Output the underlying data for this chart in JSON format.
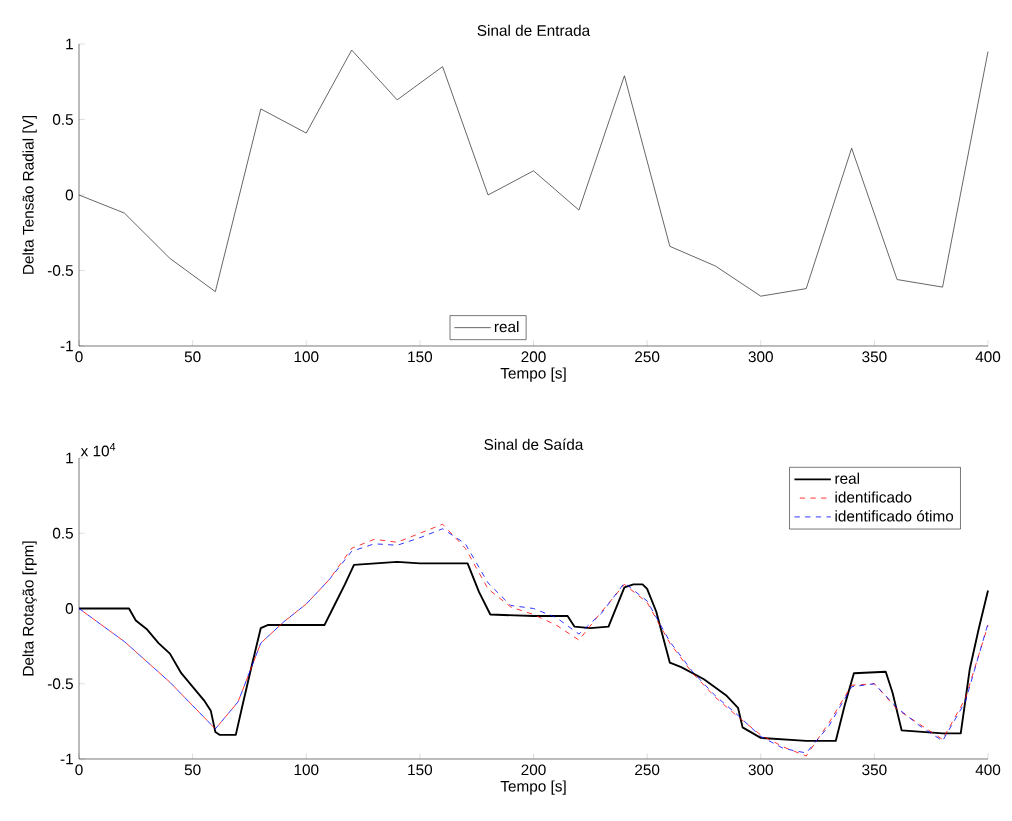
{
  "chart_data": [
    {
      "type": "line",
      "title": "Sinal de Entrada",
      "xlabel": "Tempo [s]",
      "ylabel": "Delta Tensão Radial [V]",
      "xlim": [
        0,
        400
      ],
      "ylim": [
        -1,
        1
      ],
      "xticks": [
        0,
        50,
        100,
        150,
        200,
        250,
        300,
        350,
        400
      ],
      "yticks": [
        -1,
        -0.5,
        0,
        0.5,
        1
      ],
      "legend": "bottom",
      "line_style": "solid",
      "series": [
        {
          "name": "real",
          "color": "#404040",
          "x": [
            0,
            20,
            40,
            60,
            80,
            100,
            120,
            140,
            160,
            180,
            200,
            220,
            240,
            260,
            280,
            300,
            320,
            340,
            360,
            380,
            400
          ],
          "values": [
            0,
            -0.12,
            -0.42,
            -0.64,
            0.57,
            0.41,
            0.96,
            0.63,
            0.85,
            0.0,
            0.16,
            -0.1,
            0.79,
            -0.34,
            -0.47,
            -0.67,
            -0.62,
            0.31,
            -0.56,
            -0.61,
            0.95
          ]
        }
      ]
    },
    {
      "type": "line",
      "title": "Sinal de Saída",
      "xlabel": "Tempo [s]",
      "ylabel": "Delta Rotação [rpm]",
      "annotations": [
        "x 10$^{4}$"
      ],
      "xlim": [
        0,
        400
      ],
      "ylim": [
        -1,
        1
      ],
      "xticks": [
        0,
        50,
        100,
        150,
        200,
        250,
        300,
        350,
        400
      ],
      "yticks": [
        -1,
        -0.5,
        0,
        0.5,
        1
      ],
      "legend": "top right",
      "series": [
        {
          "name": "real",
          "color": "#000000",
          "line_style": "solid",
          "x": [
            0,
            22,
            25,
            30,
            35,
            40,
            45,
            50,
            55,
            58,
            60,
            62,
            69,
            72,
            76,
            80,
            83,
            108,
            113,
            117,
            121,
            140,
            150,
            171,
            176,
            181,
            200,
            205,
            215,
            218,
            225,
            233,
            240,
            244,
            248,
            250,
            254,
            260,
            265,
            275,
            285,
            290,
            292,
            300,
            320,
            333,
            337,
            341,
            355,
            358,
            362,
            380,
            388,
            392,
            396,
            400
          ],
          "values": [
            0,
            0,
            -0.08,
            -0.14,
            -0.23,
            -0.3,
            -0.43,
            -0.52,
            -0.61,
            -0.68,
            -0.82,
            -0.84,
            -0.84,
            -0.64,
            -0.38,
            -0.13,
            -0.11,
            -0.11,
            0.04,
            0.16,
            0.29,
            0.31,
            0.3,
            0.3,
            0.11,
            -0.04,
            -0.05,
            -0.05,
            -0.05,
            -0.12,
            -0.13,
            -0.12,
            0.14,
            0.16,
            0.16,
            0.13,
            -0.02,
            -0.36,
            -0.39,
            -0.47,
            -0.58,
            -0.66,
            -0.79,
            -0.86,
            -0.88,
            -0.88,
            -0.64,
            -0.43,
            -0.42,
            -0.56,
            -0.81,
            -0.83,
            -0.83,
            -0.4,
            -0.13,
            0.12
          ]
        },
        {
          "name": "identificado",
          "color": "#ff0000",
          "line_style": "dashed",
          "x": [
            0,
            20,
            40,
            60,
            70,
            80,
            90,
            100,
            110,
            120,
            130,
            140,
            150,
            160,
            170,
            180,
            190,
            200,
            210,
            220,
            230,
            240,
            250,
            260,
            270,
            280,
            290,
            300,
            310,
            320,
            330,
            340,
            350,
            360,
            370,
            380,
            390,
            400
          ],
          "values": [
            0,
            -0.22,
            -0.49,
            -0.8,
            -0.62,
            -0.23,
            -0.09,
            0.03,
            0.19,
            0.4,
            0.46,
            0.44,
            0.5,
            0.56,
            0.4,
            0.13,
            0.01,
            -0.04,
            -0.11,
            -0.21,
            -0.02,
            0.16,
            0.04,
            -0.23,
            -0.43,
            -0.59,
            -0.72,
            -0.84,
            -0.92,
            -0.98,
            -0.76,
            -0.51,
            -0.5,
            -0.67,
            -0.77,
            -0.87,
            -0.6,
            -0.11
          ]
        },
        {
          "name": "identificado ótimo",
          "color": "#0000ff",
          "line_style": "dashed",
          "x": [
            0,
            20,
            40,
            60,
            70,
            80,
            90,
            100,
            110,
            120,
            130,
            140,
            150,
            160,
            170,
            180,
            190,
            200,
            210,
            220,
            230,
            240,
            250,
            260,
            270,
            280,
            290,
            300,
            310,
            320,
            330,
            340,
            350,
            360,
            370,
            380,
            390,
            400
          ],
          "values": [
            0,
            -0.22,
            -0.49,
            -0.8,
            -0.62,
            -0.23,
            -0.09,
            0.03,
            0.19,
            0.38,
            0.43,
            0.42,
            0.47,
            0.53,
            0.43,
            0.17,
            0.02,
            0.0,
            -0.06,
            -0.17,
            -0.03,
            0.17,
            0.05,
            -0.22,
            -0.42,
            -0.58,
            -0.71,
            -0.85,
            -0.93,
            -0.96,
            -0.78,
            -0.52,
            -0.5,
            -0.66,
            -0.78,
            -0.88,
            -0.62,
            -0.1
          ]
        }
      ]
    }
  ]
}
